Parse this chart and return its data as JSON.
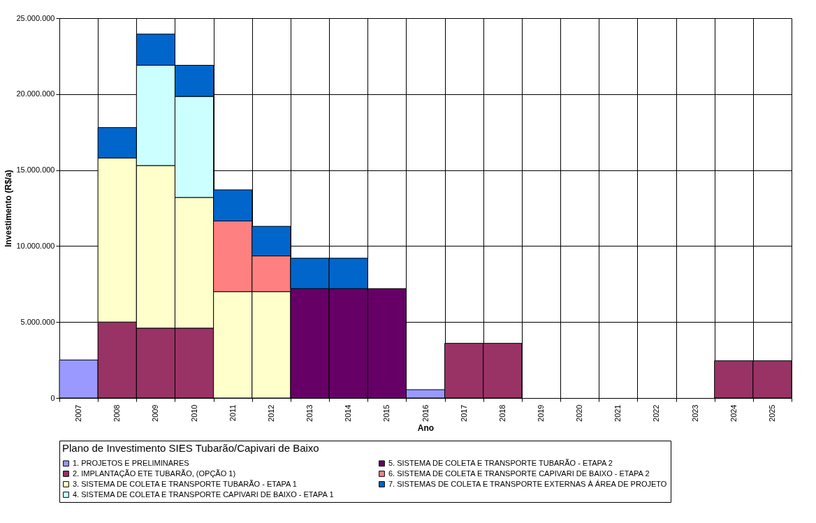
{
  "chart_data": {
    "type": "bar",
    "stacked": true,
    "title": "Plano de Investimento SIES Tubarão/Capivari de Baixo",
    "xlabel": "Ano",
    "ylabel": "Investimento (R$/a)",
    "categories": [
      "2007",
      "2008",
      "2009",
      "2010",
      "2011",
      "2012",
      "2013",
      "2014",
      "2015",
      "2016",
      "2017",
      "2018",
      "2019",
      "2020",
      "2021",
      "2022",
      "2023",
      "2024",
      "2025"
    ],
    "series": [
      {
        "name": "1. PROJETOS E PRELIMINARES",
        "color": "#9999ff",
        "values": [
          2500000,
          null,
          null,
          null,
          null,
          null,
          null,
          null,
          null,
          550000,
          null,
          null,
          null,
          null,
          null,
          null,
          null,
          null,
          null
        ]
      },
      {
        "name": "2. IMPLANTAÇÃO ETE TUBARÃO, (OPÇÃO 1)",
        "color": "#993366",
        "values": [
          null,
          5000000,
          4600000,
          4600000,
          null,
          null,
          null,
          null,
          null,
          null,
          3600000,
          3600000,
          null,
          null,
          null,
          null,
          null,
          2450000,
          2450000
        ]
      },
      {
        "name": "3. SISTEMA DE COLETA E TRANSPORTE TUBARÃO - ETAPA 1",
        "color": "#ffffcc",
        "values": [
          null,
          10800000,
          10700000,
          8600000,
          7000000,
          7000000,
          null,
          null,
          null,
          null,
          null,
          null,
          null,
          null,
          null,
          null,
          null,
          null,
          null
        ]
      },
      {
        "name": "4. SISTEMA DE COLETA E TRANSPORTE CAPIVARI DE BAIXO - ETAPA 1",
        "color": "#ccffff",
        "values": [
          null,
          null,
          6600000,
          6650000,
          null,
          null,
          null,
          null,
          null,
          null,
          null,
          null,
          null,
          null,
          null,
          null,
          null,
          null,
          null
        ]
      },
      {
        "name": "5. SISTEMA DE COLETA E TRANSPORTE TUBARÃO - ETAPA 2",
        "color": "#660066",
        "values": [
          null,
          null,
          null,
          null,
          null,
          null,
          7200000,
          7200000,
          7200000,
          null,
          null,
          null,
          null,
          null,
          null,
          null,
          null,
          null,
          null
        ]
      },
      {
        "name": "6. SISTEMA DE COLETA E TRANSPORTE CAPIVARI DE BAIXO - ETAPA 2",
        "color": "#ff8080",
        "values": [
          null,
          null,
          null,
          null,
          4650000,
          2350000,
          null,
          null,
          null,
          null,
          null,
          null,
          null,
          null,
          null,
          null,
          null,
          null,
          null
        ]
      },
      {
        "name": "7. SISTEMAS DE COLETA E TRANSPORTE EXTERNAS À ÁREA DE PROJETO",
        "color": "#0066cc",
        "values": [
          null,
          2000000,
          2050000,
          2050000,
          2050000,
          1950000,
          2000000,
          2000000,
          null,
          null,
          null,
          null,
          null,
          null,
          null,
          null,
          null,
          null,
          null
        ]
      }
    ],
    "ylim": [
      0,
      25000000
    ],
    "yticks": [
      {
        "value": 0,
        "label": "0"
      },
      {
        "value": 5000000,
        "label": "5.000.000"
      },
      {
        "value": 10000000,
        "label": "10.000.000"
      },
      {
        "value": 15000000,
        "label": "15.000.000"
      },
      {
        "value": 20000000,
        "label": "20.000.000"
      },
      {
        "value": 25000000,
        "label": "25.000.000"
      }
    ],
    "grid": true,
    "legend": "bottom"
  }
}
